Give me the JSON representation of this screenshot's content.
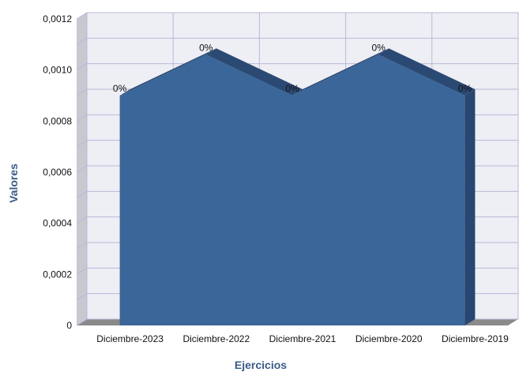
{
  "chart_data": {
    "type": "area",
    "three_d": true,
    "categories": [
      "Diciembre-2023",
      "Diciembre-2022",
      "Diciembre-2021",
      "Diciembre-2020",
      "Diciembre-2019"
    ],
    "series": [
      {
        "values": [
          0.0009,
          0.00106,
          0.0009,
          0.00106,
          0.0009
        ]
      }
    ],
    "data_labels": [
      "0%",
      "0%",
      "0%",
      "0%",
      "0%"
    ],
    "xlabel": "Ejercicios",
    "ylabel": "Valores",
    "ylim": [
      0,
      0.0012
    ],
    "y_ticks": [
      {
        "value": 0,
        "label": "0"
      },
      {
        "value": 0.0002,
        "label": "0,0002"
      },
      {
        "value": 0.0004,
        "label": "0,0004"
      },
      {
        "value": 0.0006,
        "label": "0,0006"
      },
      {
        "value": 0.0008,
        "label": "0,0008"
      },
      {
        "value": 0.001,
        "label": "0,0010"
      },
      {
        "value": 0.0012,
        "label": "0,0012"
      }
    ],
    "grid": true,
    "legend": "none",
    "colors": {
      "area_front": "#3a6699",
      "area_top": "#2b4a73",
      "area_side": "#284670",
      "wall": "#eeeef5",
      "wall_side": "#c8c8d0",
      "floor": "#8a8a8a",
      "grid": "#b8b8d8",
      "axis_title": "#3b5b86"
    }
  }
}
